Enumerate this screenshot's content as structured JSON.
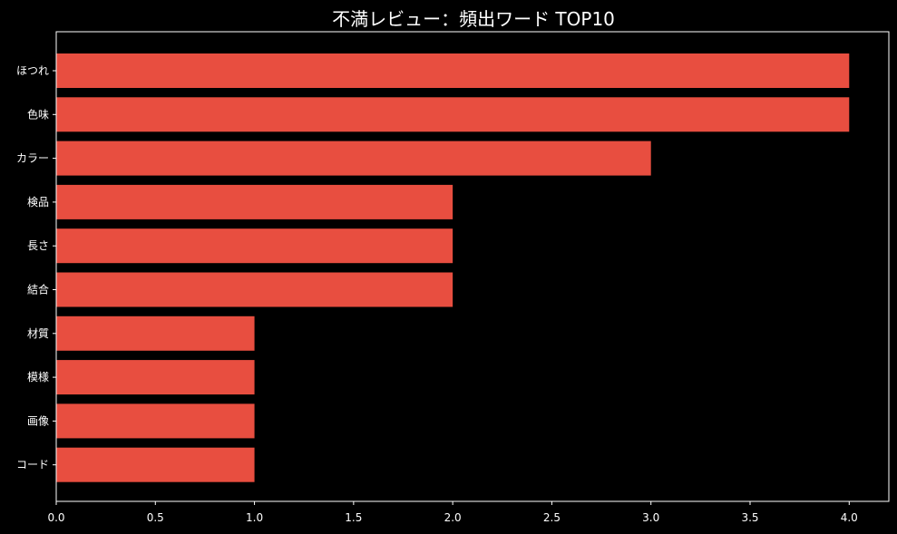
{
  "chart_data": {
    "type": "bar",
    "orientation": "horizontal",
    "title": "不満レビュー：頻出ワード TOP10",
    "xlabel": "",
    "ylabel": "",
    "categories": [
      "ほつれ",
      "色味",
      "カラー",
      "検品",
      "長さ",
      "結合",
      "材質",
      "模様",
      "画像",
      "コード"
    ],
    "values": [
      4,
      4,
      3,
      2,
      2,
      2,
      1,
      1,
      1,
      1
    ],
    "xlim": [
      0,
      4.2
    ],
    "xticks": [
      "0.0",
      "0.5",
      "1.0",
      "1.5",
      "2.0",
      "2.5",
      "3.0",
      "3.5",
      "4.0"
    ],
    "grid": false,
    "legend": "none",
    "bar_color": "#e84e40",
    "background_color": "#000000",
    "text_color": "#ffffff"
  }
}
